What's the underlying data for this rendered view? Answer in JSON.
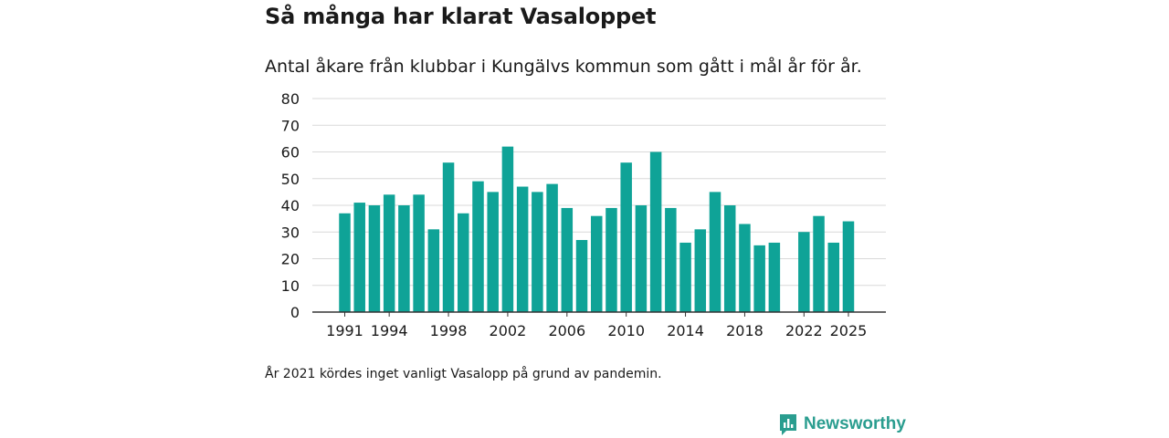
{
  "title": "Så många har klarat Vasaloppet",
  "subtitle": "Antal åkare från klubbar i Kungälvs kommun som gått i mål år för år.",
  "note": "År 2021 kördes inget vanligt Vasalopp på grund av pandemin.",
  "brand": {
    "name": "Newsworthy",
    "icon": "newsworthy-logo-icon",
    "color": "#2a9d8f"
  },
  "colors": {
    "bar": "#0fa397",
    "grid": "#d9d9d9",
    "axis": "#333333",
    "text": "#1a1a1a"
  },
  "chart_data": {
    "type": "bar",
    "title": "Så många har klarat Vasaloppet",
    "xlabel": "",
    "ylabel": "",
    "ylim": [
      0,
      80
    ],
    "yticks": [
      0,
      10,
      20,
      30,
      40,
      50,
      60,
      70,
      80
    ],
    "xtick_labels": [
      "1991",
      "1994",
      "1998",
      "2002",
      "2006",
      "2010",
      "2014",
      "2018",
      "2022",
      "2025"
    ],
    "categories": [
      "1991",
      "1992",
      "1993",
      "1994",
      "1995",
      "1996",
      "1997",
      "1998",
      "1999",
      "2000",
      "2001",
      "2002",
      "2003",
      "2004",
      "2005",
      "2006",
      "2007",
      "2008",
      "2009",
      "2010",
      "2011",
      "2012",
      "2013",
      "2014",
      "2015",
      "2016",
      "2017",
      "2018",
      "2019",
      "2020",
      "2021",
      "2022",
      "2023",
      "2024",
      "2025"
    ],
    "values": [
      37,
      41,
      40,
      44,
      40,
      44,
      31,
      56,
      37,
      49,
      45,
      62,
      47,
      45,
      48,
      39,
      27,
      36,
      39,
      56,
      40,
      60,
      39,
      26,
      31,
      45,
      40,
      33,
      25,
      26,
      null,
      30,
      36,
      26,
      34
    ],
    "grid": true,
    "legend": "none"
  }
}
